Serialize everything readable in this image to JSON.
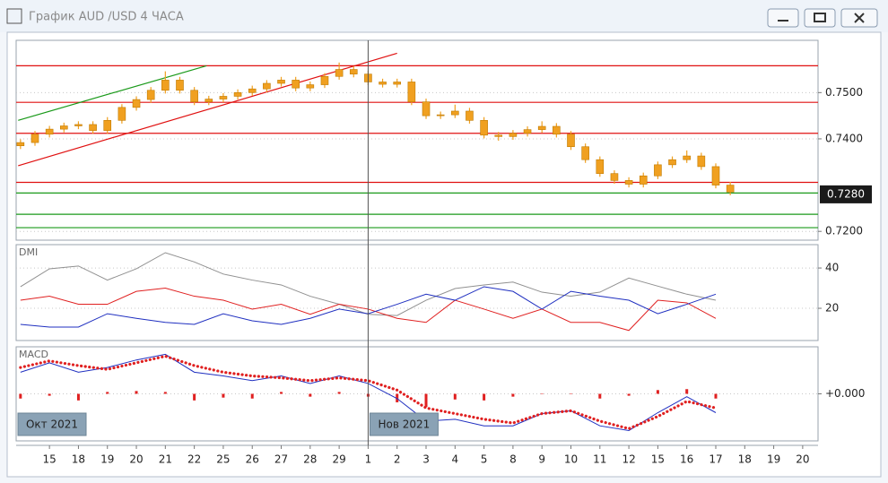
{
  "window": {
    "title": "График AUD /USD  4 ЧАСА"
  },
  "chart_data": [
    {
      "type": "candlestick",
      "color": "#f0a020",
      "xlim": [
        -1.15,
        26.53
      ],
      "xticks": [
        {
          "value": 0,
          "label": "15"
        },
        {
          "value": 1,
          "label": "18"
        },
        {
          "value": 2,
          "label": "19"
        },
        {
          "value": 3,
          "label": "20"
        },
        {
          "value": 4,
          "label": "21"
        },
        {
          "value": 5,
          "label": "22"
        },
        {
          "value": 6,
          "label": "25"
        },
        {
          "value": 7,
          "label": "26"
        },
        {
          "value": 8,
          "label": "27"
        },
        {
          "value": 9,
          "label": "28"
        },
        {
          "value": 10,
          "label": "29"
        },
        {
          "value": 11,
          "label": "1"
        },
        {
          "value": 12,
          "label": "2"
        },
        {
          "value": 13,
          "label": "3"
        },
        {
          "value": 14,
          "label": "4"
        },
        {
          "value": 15,
          "label": "5"
        },
        {
          "value": 16,
          "label": "8"
        },
        {
          "value": 17,
          "label": "9"
        },
        {
          "value": 18,
          "label": "10"
        },
        {
          "value": 19,
          "label": "11"
        },
        {
          "value": 20,
          "label": "12"
        },
        {
          "value": 21,
          "label": "15"
        },
        {
          "value": 22,
          "label": "16"
        },
        {
          "value": 23,
          "label": "17"
        },
        {
          "value": 24,
          "label": "18"
        },
        {
          "value": 25,
          "label": "19"
        },
        {
          "value": 26,
          "label": "20"
        }
      ],
      "ylim": [
        0.7181,
        0.7613
      ],
      "yticks": [
        {
          "value": 0.72,
          "label": "0.7200"
        },
        {
          "value": 0.74,
          "label": "0.7400"
        },
        {
          "value": 0.75,
          "label": "0.7500"
        }
      ],
      "grid": true,
      "x": [
        -1,
        -0.5,
        0,
        0.5,
        1,
        1.5,
        2,
        2.5,
        3,
        3.5,
        4,
        4.5,
        5,
        5.5,
        6,
        6.5,
        7,
        7.5,
        8,
        8.5,
        9,
        9.5,
        10,
        10.5,
        11,
        11.5,
        12,
        12.5,
        13,
        13.5,
        14,
        14.5,
        15,
        15.5,
        16,
        16.5,
        17,
        17.5,
        18,
        18.5,
        19,
        19.5,
        20,
        20.5,
        21,
        21.5,
        22,
        22.5,
        23,
        23.5
      ],
      "open": [
        0.7385,
        0.7392,
        0.741,
        0.7421,
        0.7428,
        0.7431,
        0.7418,
        0.744,
        0.7468,
        0.7485,
        0.7505,
        0.7527,
        0.7505,
        0.748,
        0.7486,
        0.7492,
        0.75,
        0.7508,
        0.752,
        0.7527,
        0.751,
        0.7517,
        0.7535,
        0.755,
        0.754,
        0.7523,
        0.7518,
        0.7523,
        0.748,
        0.745,
        0.7452,
        0.746,
        0.744,
        0.7408,
        0.7405,
        0.7412,
        0.742,
        0.7427,
        0.741,
        0.7383,
        0.7355,
        0.7325,
        0.731,
        0.7302,
        0.732,
        0.7344,
        0.7355,
        0.7363,
        0.734,
        0.73
      ],
      "high": [
        0.7399,
        0.7417,
        0.7428,
        0.7435,
        0.7438,
        0.7438,
        0.7447,
        0.7475,
        0.7492,
        0.7512,
        0.7546,
        0.7534,
        0.7512,
        0.7493,
        0.7499,
        0.7507,
        0.7515,
        0.7527,
        0.7534,
        0.7534,
        0.7524,
        0.7542,
        0.7565,
        0.7557,
        0.7547,
        0.753,
        0.753,
        0.753,
        0.7487,
        0.7459,
        0.7474,
        0.7467,
        0.7447,
        0.7415,
        0.7419,
        0.7427,
        0.7438,
        0.7434,
        0.7417,
        0.739,
        0.7362,
        0.7332,
        0.7317,
        0.7327,
        0.7351,
        0.7362,
        0.7375,
        0.737,
        0.7347,
        0.7307
      ],
      "low": [
        0.7378,
        0.7385,
        0.7403,
        0.7414,
        0.7421,
        0.7411,
        0.7411,
        0.7433,
        0.7461,
        0.7478,
        0.7498,
        0.7498,
        0.7473,
        0.7473,
        0.7479,
        0.7485,
        0.7493,
        0.7501,
        0.7513,
        0.7503,
        0.7503,
        0.751,
        0.7528,
        0.7533,
        0.7516,
        0.7511,
        0.7511,
        0.7473,
        0.7443,
        0.7443,
        0.7445,
        0.7433,
        0.7401,
        0.7396,
        0.7398,
        0.7405,
        0.7413,
        0.7403,
        0.7376,
        0.7348,
        0.7318,
        0.7303,
        0.7295,
        0.7295,
        0.7313,
        0.7337,
        0.7348,
        0.7333,
        0.7293,
        0.7278
      ],
      "close": [
        0.7392,
        0.741,
        0.7421,
        0.7428,
        0.7431,
        0.7418,
        0.744,
        0.7468,
        0.7485,
        0.7505,
        0.7527,
        0.7505,
        0.748,
        0.7486,
        0.7492,
        0.75,
        0.7508,
        0.752,
        0.7527,
        0.751,
        0.7517,
        0.7535,
        0.755,
        0.754,
        0.7523,
        0.7518,
        0.7523,
        0.748,
        0.745,
        0.7452,
        0.746,
        0.744,
        0.7408,
        0.7405,
        0.7412,
        0.742,
        0.7427,
        0.741,
        0.7383,
        0.7355,
        0.7325,
        0.731,
        0.7302,
        0.732,
        0.7344,
        0.7355,
        0.7363,
        0.734,
        0.73,
        0.7285
      ],
      "hlines": [
        {
          "value": 0.7558,
          "color": "#e01010"
        },
        {
          "value": 0.7479,
          "color": "#e01010"
        },
        {
          "value": 0.7412,
          "color": "#e01010"
        },
        {
          "value": 0.7306,
          "color": "#e01010"
        },
        {
          "value": 0.7283,
          "color": "#1a9a1a"
        },
        {
          "value": 0.7237,
          "color": "#1a9a1a"
        },
        {
          "value": 0.7208,
          "color": "#1a9a1a"
        }
      ],
      "trendlines": [
        {
          "x": [
            -1.08,
            5.42
          ],
          "y": [
            0.744,
            0.7558
          ],
          "color": "#1a9a1a"
        },
        {
          "x": [
            -1.08,
            12.0
          ],
          "y": [
            0.7342,
            0.7585
          ],
          "color": "#e01010"
        }
      ],
      "last_price": {
        "value": 0.728,
        "label": "0.7280"
      },
      "separators": [
        11
      ],
      "annotations": [
        {
          "text": "Окт 2021",
          "x": -1.15
        },
        {
          "text": "Нов 2021",
          "x": 11
        }
      ]
    },
    {
      "type": "line",
      "title": "DMI",
      "ylim": [
        4,
        51.6
      ],
      "yticks": [
        20,
        40
      ],
      "x": [
        -1,
        0,
        1,
        2,
        3,
        4,
        5,
        6,
        7,
        8,
        9,
        10,
        11,
        12,
        13,
        14,
        15,
        16,
        17,
        18,
        19,
        20,
        21,
        22,
        23
      ],
      "series": [
        {
          "color": "#909090",
          "values": [
            30.7,
            39.6,
            41,
            34,
            39.6,
            47.6,
            43,
            37,
            34,
            31.6,
            26,
            22,
            17,
            16.4,
            24,
            29.8,
            31.6,
            33,
            28,
            26,
            28,
            35,
            31,
            27,
            24
          ]
        },
        {
          "color": "#e02020",
          "values": [
            24,
            26,
            22,
            22,
            28.4,
            30,
            26,
            24,
            19.6,
            22,
            17,
            22,
            19.6,
            15,
            13,
            24,
            19.6,
            15,
            19.6,
            13,
            13,
            9,
            24,
            22.7,
            15
          ]
        },
        {
          "color": "#1f2fc0",
          "values": [
            12,
            10.7,
            10.7,
            17.3,
            15,
            13,
            12,
            17.3,
            13.8,
            12,
            15,
            19.6,
            17.3,
            22,
            27,
            24,
            30.7,
            28.4,
            19.6,
            28.4,
            26,
            24,
            17.3,
            22,
            27
          ]
        }
      ]
    },
    {
      "type": "macd",
      "title": "MACD",
      "ylim": [
        -0.005,
        0.005
      ],
      "yticks": [
        {
          "value": 0,
          "label": "+0.000"
        }
      ],
      "x": [
        -1,
        0,
        1,
        2,
        3,
        4,
        5,
        6,
        7,
        8,
        9,
        10,
        11,
        12,
        13,
        14,
        15,
        16,
        17,
        18,
        19,
        20,
        21,
        22,
        23
      ],
      "series": [
        {
          "color": "#1f2fc0",
          "values": [
            0.0023,
            0.0033,
            0.0023,
            0.0028,
            0.0036,
            0.0042,
            0.0023,
            0.0019,
            0.0014,
            0.0019,
            0.0011,
            0.0019,
            0.0011,
            -0.0005,
            -0.0029,
            -0.0027,
            -0.0034,
            -0.0034,
            -0.0021,
            -0.0018,
            -0.0034,
            -0.0039,
            -0.002,
            -0.0003,
            -0.002
          ]
        },
        {
          "color": "#e02020",
          "values": [
            0.0028,
            0.0035,
            0.003,
            0.0026,
            0.0033,
            0.004,
            0.003,
            0.0023,
            0.0019,
            0.0017,
            0.0014,
            0.0017,
            0.0014,
            0.0004,
            -0.0015,
            -0.0021,
            -0.0027,
            -0.0031,
            -0.0021,
            -0.0018,
            -0.0029,
            -0.0037,
            -0.0024,
            -0.0008,
            -0.0015
          ]
        }
      ],
      "histogram": {
        "color": "#e02020",
        "values": [
          -0.0005,
          -0.0002,
          -0.0007,
          0.0002,
          0.0003,
          0.0002,
          -0.0007,
          -0.0004,
          -0.0005,
          0.0002,
          -0.0003,
          0.0002,
          -0.0003,
          -0.0009,
          -0.0014,
          -0.0006,
          -0.0007,
          -0.0003,
          0,
          0,
          -0.0005,
          -0.0002,
          0.0004,
          0.0005,
          -0.0005
        ]
      }
    }
  ]
}
